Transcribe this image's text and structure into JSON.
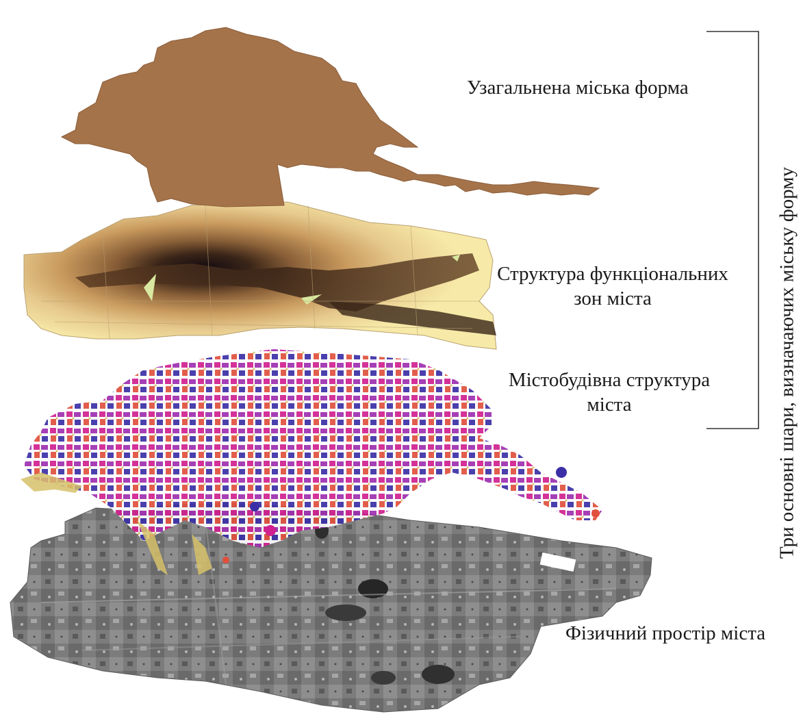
{
  "layers": {
    "generalized_form": {
      "label": "Узагальнена міська форма",
      "color": "#a5734a"
    },
    "functional_zones": {
      "label_line1": "Структура функціональних",
      "label_line2": "зон міста",
      "colors": [
        "#f7eaa8",
        "#e6c98d",
        "#c99a5e",
        "#8a6038",
        "#3a2518",
        "#120a10"
      ]
    },
    "urban_structure": {
      "label_line1": "Містобудівна структура",
      "label_line2": "міста",
      "colors": [
        "#d6c16a",
        "#e0503c",
        "#d0208f",
        "#9d2fb0",
        "#3a2fa6"
      ]
    },
    "physical_space": {
      "label": "Фізичний простір міста",
      "colors": [
        "#6a6a6a",
        "#8e8e8e",
        "#4a4a4a",
        "#b0b0b0"
      ]
    }
  },
  "bracket": {
    "title": "Три основні шари, визначаючих міську форму"
  }
}
